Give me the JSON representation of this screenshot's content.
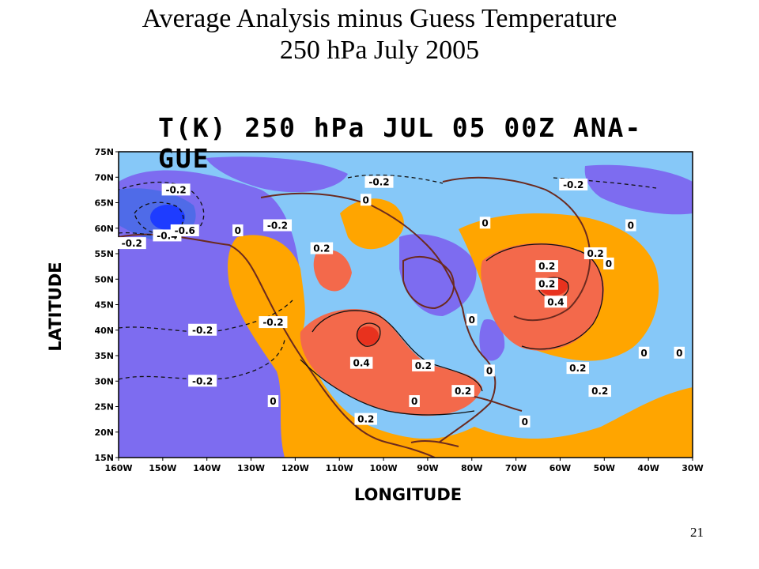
{
  "slide": {
    "title_line1": "Average Analysis minus Guess Temperature",
    "title_line2": "250 hPa July 2005",
    "page_number": "21"
  },
  "map": {
    "title": "T(K) 250 hPa JUL 05 00Z ANA-GUE",
    "xlabel": "LONGITUDE",
    "ylabel": "LATITUDE",
    "lon_ticks": [
      "160W",
      "150W",
      "140W",
      "130W",
      "120W",
      "110W",
      "100W",
      "90W",
      "80W",
      "70W",
      "60W",
      "50W",
      "40W",
      "30W"
    ],
    "lat_ticks": [
      "75N",
      "70N",
      "65N",
      "60N",
      "55N",
      "50N",
      "45N",
      "40N",
      "35N",
      "30N",
      "25N",
      "20N",
      "15N"
    ],
    "lon_range": [
      -160,
      -30
    ],
    "lat_range": [
      15,
      75
    ],
    "shading_colors": {
      "below_minus_0_4": "#1e3cff",
      "minus_0_4_to_minus_0_2": "#4f6be8",
      "minus_0_2_to_0": "#7d6cf0",
      "zero_band": "#86c8f8",
      "0_to_0_2": "#ffa500",
      "0_2_to_0_4": "#f3694b",
      "above_0_4": "#e8321e"
    },
    "contour_labels": [
      {
        "text": "-0.2",
        "lon": -147,
        "lat": 67.5
      },
      {
        "text": "-0.2",
        "lon": -101,
        "lat": 69
      },
      {
        "text": "-0.2",
        "lon": -57,
        "lat": 68.5
      },
      {
        "text": "0",
        "lon": -104,
        "lat": 65.5
      },
      {
        "text": "0",
        "lon": -77,
        "lat": 61
      },
      {
        "text": "0",
        "lon": -44,
        "lat": 60.5
      },
      {
        "text": "-0.2",
        "lon": -124,
        "lat": 60.5
      },
      {
        "text": "0",
        "lon": -133,
        "lat": 59.5
      },
      {
        "text": "-0.2",
        "lon": -157,
        "lat": 57
      },
      {
        "text": "-0.4",
        "lon": -149,
        "lat": 58.5
      },
      {
        "text": "-0.6",
        "lon": -145,
        "lat": 59.5
      },
      {
        "text": "0.2",
        "lon": -114,
        "lat": 56
      },
      {
        "text": "0.2",
        "lon": -52,
        "lat": 55
      },
      {
        "text": "0",
        "lon": -49,
        "lat": 53
      },
      {
        "text": "0.2",
        "lon": -63,
        "lat": 52.5
      },
      {
        "text": "0.2",
        "lon": -63,
        "lat": 49
      },
      {
        "text": "0.4",
        "lon": -61,
        "lat": 45.5
      },
      {
        "text": "-0.2",
        "lon": -125,
        "lat": 41.5
      },
      {
        "text": "-0.2",
        "lon": -141,
        "lat": 40
      },
      {
        "text": "0",
        "lon": -80,
        "lat": 42
      },
      {
        "text": "0",
        "lon": -41,
        "lat": 35.5
      },
      {
        "text": "0",
        "lon": -33,
        "lat": 35.5
      },
      {
        "text": "0.4",
        "lon": -105,
        "lat": 33.5
      },
      {
        "text": "0.2",
        "lon": -91,
        "lat": 33
      },
      {
        "text": "0",
        "lon": -76,
        "lat": 32
      },
      {
        "text": "0.2",
        "lon": -56,
        "lat": 32.5
      },
      {
        "text": "-0.2",
        "lon": -141,
        "lat": 30
      },
      {
        "text": "0.2",
        "lon": -82,
        "lat": 28
      },
      {
        "text": "0.2",
        "lon": -51,
        "lat": 28
      },
      {
        "text": "0",
        "lon": -125,
        "lat": 26
      },
      {
        "text": "0",
        "lon": -93,
        "lat": 26
      },
      {
        "text": "0.2",
        "lon": -104,
        "lat": 22.5
      },
      {
        "text": "0",
        "lon": -68,
        "lat": 22
      }
    ]
  }
}
